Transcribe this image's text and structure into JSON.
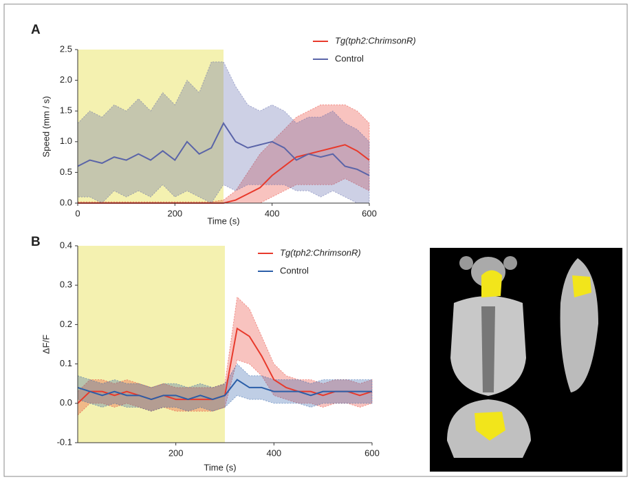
{
  "chart_data": [
    {
      "type": "line",
      "title": "A",
      "xlabel": "Time (s)",
      "ylabel": "Speed (mm / s)",
      "xlim": [
        0,
        600
      ],
      "xticks": [
        0,
        200,
        400,
        600
      ],
      "ylim": [
        0,
        2.5
      ],
      "yticks": [
        {
          "value": 0,
          "label": "0.0"
        },
        0.5,
        {
          "value": 1,
          "label": "1.0"
        },
        1.5,
        {
          "value": 2,
          "label": "2.0"
        },
        2.5
      ],
      "shade": [
        0,
        300
      ],
      "shade_color": "#f4f1b0",
      "x": [
        0,
        25,
        50,
        75,
        100,
        125,
        150,
        175,
        200,
        225,
        250,
        275,
        300,
        325,
        350,
        375,
        400,
        425,
        450,
        475,
        500,
        525,
        550,
        575,
        600
      ],
      "series": [
        {
          "name": "Tg(tph2:ChrimsonR)",
          "color": "#e8392b",
          "values": [
            0,
            0,
            0,
            0,
            0,
            0,
            0,
            0,
            0,
            0,
            0,
            0,
            0,
            0.05,
            0.15,
            0.25,
            0.45,
            0.6,
            0.75,
            0.8,
            0.85,
            0.9,
            0.95,
            0.85,
            0.7
          ],
          "upper": [
            0.02,
            0.02,
            0.02,
            0.02,
            0.02,
            0.02,
            0.02,
            0.02,
            0.02,
            0.02,
            0.02,
            0.02,
            0.05,
            0.2,
            0.5,
            0.8,
            1.0,
            1.2,
            1.4,
            1.5,
            1.6,
            1.6,
            1.6,
            1.5,
            1.3
          ],
          "lower": [
            0,
            0,
            0,
            0,
            0,
            0,
            0,
            0,
            0,
            0,
            0,
            0,
            0,
            0,
            0,
            0,
            0.1,
            0.2,
            0.3,
            0.3,
            0.3,
            0.3,
            0.4,
            0.3,
            0.2
          ]
        },
        {
          "name": "Control",
          "color": "#5a64a8",
          "values": [
            0.6,
            0.7,
            0.65,
            0.75,
            0.7,
            0.8,
            0.7,
            0.85,
            0.7,
            1.0,
            0.8,
            0.9,
            1.3,
            1.0,
            0.9,
            0.95,
            1.0,
            0.9,
            0.7,
            0.8,
            0.75,
            0.8,
            0.6,
            0.55,
            0.45
          ],
          "upper": [
            1.3,
            1.5,
            1.4,
            1.6,
            1.5,
            1.7,
            1.5,
            1.8,
            1.6,
            2.0,
            1.8,
            2.3,
            2.3,
            1.9,
            1.6,
            1.5,
            1.6,
            1.5,
            1.3,
            1.4,
            1.4,
            1.5,
            1.3,
            1.2,
            1.0
          ],
          "lower": [
            0.1,
            0.1,
            0,
            0.2,
            0.1,
            0.2,
            0.1,
            0.3,
            0.1,
            0.2,
            0.1,
            0,
            0.3,
            0.2,
            0.3,
            0.3,
            0.3,
            0.3,
            0.2,
            0.2,
            0.1,
            0.2,
            0.1,
            0,
            0
          ]
        }
      ]
    },
    {
      "type": "line",
      "title": "B",
      "xlabel": "Time (s)",
      "ylabel": "ΔF/F",
      "xlim": [
        0,
        600
      ],
      "xticks": [
        200,
        400,
        600
      ],
      "ylim": [
        -0.1,
        0.4
      ],
      "yticks": [
        -0.1,
        {
          "value": 0,
          "label": "0.0"
        },
        0.1,
        0.2,
        0.3,
        0.4
      ],
      "shade": [
        0,
        300
      ],
      "shade_color": "#f4f1b0",
      "x": [
        0,
        25,
        50,
        75,
        100,
        125,
        150,
        175,
        200,
        225,
        250,
        275,
        300,
        325,
        350,
        375,
        400,
        425,
        450,
        475,
        500,
        525,
        550,
        575,
        600
      ],
      "series": [
        {
          "name": "Tg(tph2:ChrimsonR)",
          "color": "#e8392b",
          "values": [
            0,
            0.03,
            0.03,
            0.02,
            0.03,
            0.02,
            0.01,
            0.02,
            0.01,
            0.01,
            0.01,
            0.01,
            0.02,
            0.19,
            0.17,
            0.12,
            0.06,
            0.04,
            0.03,
            0.03,
            0.02,
            0.03,
            0.03,
            0.02,
            0.03
          ],
          "upper": [
            0.03,
            0.06,
            0.06,
            0.05,
            0.06,
            0.05,
            0.04,
            0.05,
            0.04,
            0.04,
            0.04,
            0.04,
            0.05,
            0.27,
            0.24,
            0.17,
            0.1,
            0.07,
            0.06,
            0.06,
            0.05,
            0.06,
            0.06,
            0.05,
            0.06
          ],
          "lower": [
            -0.03,
            0,
            0,
            -0.01,
            0,
            -0.01,
            -0.02,
            -0.01,
            -0.02,
            -0.02,
            -0.02,
            -0.02,
            -0.01,
            0.11,
            0.1,
            0.07,
            0.02,
            0.01,
            0,
            0,
            -0.01,
            0,
            0,
            -0.01,
            0
          ]
        },
        {
          "name": "Control",
          "color": "#2a5ea8",
          "values": [
            0.04,
            0.03,
            0.02,
            0.03,
            0.02,
            0.02,
            0.01,
            0.02,
            0.02,
            0.01,
            0.02,
            0.01,
            0.02,
            0.06,
            0.04,
            0.04,
            0.03,
            0.03,
            0.03,
            0.02,
            0.03,
            0.03,
            0.03,
            0.03,
            0.03
          ],
          "upper": [
            0.07,
            0.06,
            0.05,
            0.06,
            0.05,
            0.05,
            0.04,
            0.05,
            0.05,
            0.04,
            0.05,
            0.04,
            0.05,
            0.1,
            0.07,
            0.07,
            0.06,
            0.06,
            0.06,
            0.05,
            0.06,
            0.06,
            0.06,
            0.06,
            0.06
          ],
          "lower": [
            0.01,
            0,
            -0.01,
            0,
            -0.01,
            -0.01,
            -0.02,
            -0.01,
            -0.01,
            -0.02,
            -0.01,
            -0.02,
            -0.01,
            0.02,
            0.01,
            0.01,
            0,
            0,
            0,
            -0.01,
            0,
            0,
            0,
            0,
            0
          ]
        }
      ]
    }
  ]
}
